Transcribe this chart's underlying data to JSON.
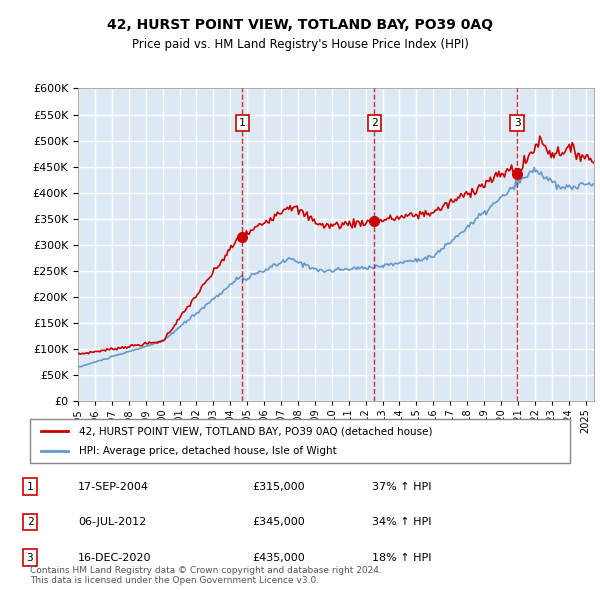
{
  "title": "42, HURST POINT VIEW, TOTLAND BAY, PO39 0AQ",
  "subtitle": "Price paid vs. HM Land Registry's House Price Index (HPI)",
  "x_start_year": 1995,
  "x_end_year": 2025,
  "y_min": 0,
  "y_max": 600000,
  "y_ticks": [
    0,
    50000,
    100000,
    150000,
    200000,
    250000,
    300000,
    350000,
    400000,
    450000,
    500000,
    550000,
    600000
  ],
  "sale_dates": [
    "2004-09-17",
    "2012-07-06",
    "2020-12-16"
  ],
  "sale_prices": [
    315000,
    345000,
    435000
  ],
  "sale_labels": [
    "1",
    "2",
    "3"
  ],
  "sale_pct": [
    "37%",
    "34%",
    "18%"
  ],
  "sale_dates_str": [
    "17-SEP-2004",
    "06-JUL-2012",
    "16-DEC-2020"
  ],
  "legend_house": "42, HURST POINT VIEW, TOTLAND BAY, PO39 0AQ (detached house)",
  "legend_hpi": "HPI: Average price, detached house, Isle of Wight",
  "footer": "Contains HM Land Registry data © Crown copyright and database right 2024.\nThis data is licensed under the Open Government Licence v3.0.",
  "house_color": "#cc0000",
  "hpi_color": "#6699cc",
  "background_color": "#dce9f5",
  "plot_bg": "#dce9f5",
  "grid_color": "#ffffff",
  "sale_marker_color": "#cc0000"
}
